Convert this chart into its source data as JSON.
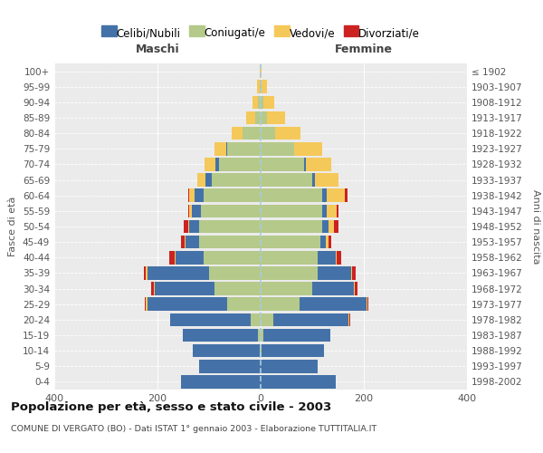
{
  "age_groups": [
    "0-4",
    "5-9",
    "10-14",
    "15-19",
    "20-24",
    "25-29",
    "30-34",
    "35-39",
    "40-44",
    "45-49",
    "50-54",
    "55-59",
    "60-64",
    "65-69",
    "70-74",
    "75-79",
    "80-84",
    "85-89",
    "90-94",
    "95-99",
    "100+"
  ],
  "birth_years": [
    "1998-2002",
    "1993-1997",
    "1988-1992",
    "1983-1987",
    "1978-1982",
    "1973-1977",
    "1968-1972",
    "1963-1967",
    "1958-1962",
    "1953-1957",
    "1948-1952",
    "1943-1947",
    "1938-1942",
    "1933-1937",
    "1928-1932",
    "1923-1927",
    "1918-1922",
    "1913-1917",
    "1908-1912",
    "1903-1907",
    "≤ 1902"
  ],
  "colors": {
    "celibe": "#4472a8",
    "coniugato": "#b5c98a",
    "vedovo": "#f5c85a",
    "divorziato": "#cc2222"
  },
  "males": {
    "celibe": [
      155,
      120,
      130,
      145,
      155,
      155,
      115,
      120,
      55,
      25,
      18,
      18,
      18,
      12,
      8,
      2,
      0,
      0,
      0,
      0,
      0
    ],
    "coniugato": [
      0,
      0,
      2,
      5,
      20,
      65,
      90,
      100,
      110,
      120,
      120,
      115,
      110,
      95,
      80,
      65,
      35,
      10,
      5,
      2,
      0
    ],
    "vedovo": [
      0,
      0,
      0,
      0,
      0,
      2,
      2,
      2,
      2,
      2,
      3,
      5,
      10,
      15,
      20,
      22,
      22,
      18,
      10,
      5,
      1
    ],
    "divorziato": [
      0,
      0,
      0,
      0,
      0,
      2,
      5,
      5,
      10,
      8,
      8,
      2,
      2,
      0,
      0,
      0,
      0,
      0,
      0,
      0,
      0
    ]
  },
  "females": {
    "nubile": [
      145,
      110,
      120,
      130,
      145,
      130,
      80,
      65,
      35,
      12,
      12,
      8,
      8,
      5,
      2,
      0,
      0,
      0,
      0,
      0,
      0
    ],
    "coniugata": [
      0,
      0,
      2,
      5,
      25,
      75,
      100,
      110,
      110,
      115,
      120,
      120,
      120,
      100,
      85,
      65,
      28,
      12,
      5,
      2,
      0
    ],
    "vedova": [
      0,
      0,
      0,
      0,
      2,
      2,
      2,
      2,
      3,
      5,
      10,
      20,
      35,
      45,
      50,
      55,
      50,
      35,
      22,
      10,
      2
    ],
    "divorziata": [
      0,
      0,
      0,
      0,
      2,
      2,
      5,
      8,
      8,
      5,
      8,
      3,
      5,
      0,
      0,
      0,
      0,
      0,
      0,
      0,
      0
    ]
  },
  "title": "Popolazione per età, sesso e stato civile - 2003",
  "subtitle": "COMUNE DI VERGATO (BO) - Dati ISTAT 1° gennaio 2003 - Elaborazione TUTTITALIA.IT",
  "xlabel_left": "Maschi",
  "xlabel_right": "Femmine",
  "ylabel_left": "Fasce di età",
  "ylabel_right": "Anni di nascita",
  "xlim": 400,
  "legend_labels": [
    "Celibi/Nubili",
    "Coniugati/e",
    "Vedovi/e",
    "Divorziati/e"
  ],
  "background_color": "#ffffff",
  "plot_bg": "#ebebeb"
}
